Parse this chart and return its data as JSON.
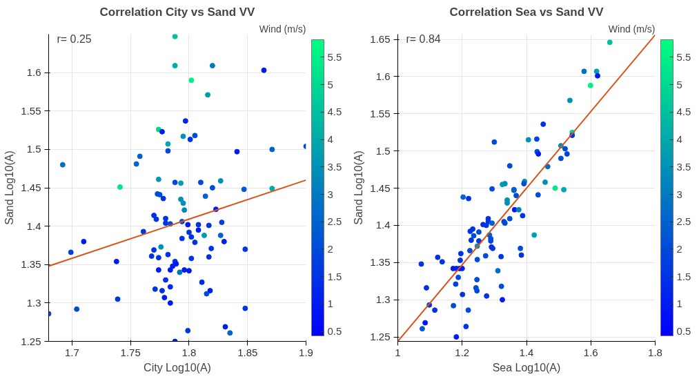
{
  "chart_data": [
    {
      "type": "scatter",
      "title": "Correlation City vs Sand VV",
      "xlabel": "City Log10(A)",
      "ylabel": "Sand Log10(A)",
      "clabel": "Wind (m/s)",
      "annotations": [
        "r= 0.25"
      ],
      "xlim": [
        1.68,
        1.9
      ],
      "ylim": [
        1.25,
        1.65
      ],
      "xticks": [
        1.7,
        1.75,
        1.8,
        1.85,
        1.9
      ],
      "yticks": [
        1.25,
        1.3,
        1.35,
        1.4,
        1.45,
        1.5,
        1.55,
        1.6
      ],
      "clim": [
        0.42,
        5.82
      ],
      "cticks": [
        0.5,
        1,
        1.5,
        2,
        2.5,
        3,
        3.5,
        4,
        4.5,
        5,
        5.5
      ],
      "grid": true,
      "series": [
        {
          "marker": "circle",
          "colors": [
            "#00c19f",
            "#00a9aa",
            "#007ac2",
            "#001bf1",
            "#00f087",
            "#009bb2",
            "#0025ed",
            "#00d893",
            "#001bf1",
            "#0091b6",
            "#004bda",
            "#0033e5",
            "#00a9aa",
            "#004bda",
            "#001bf1",
            "#0062ce",
            "#004bda",
            "#0062ce",
            "#0062ce",
            "#0070c7",
            "#009bb2",
            "#00e68c",
            "#004bda",
            "#00a0af",
            "#004bda",
            "#0091b6",
            "#004bda",
            "#0059d3",
            "#00a9aa",
            "#004bda",
            "#004bda",
            "#0033e5",
            "#0091b6",
            "#0091b6",
            "#0062ce",
            "#0088bb",
            "#001bf1",
            "#0033e5",
            "#0033e5",
            "#0033e5",
            "#0033e5",
            "#004bda",
            "#004bda",
            "#001bf1",
            "#0033e5",
            "#0033e5",
            "#0041de",
            "#001bf1",
            "#0033e5",
            "#0033e5",
            "#0033e5",
            "#009bb2",
            "#0062ce",
            "#0033e5",
            "#0033e5",
            "#001bf1",
            "#001bf1",
            "#0041de",
            "#0091b6",
            "#0033e5",
            "#0033e5",
            "#0033e5",
            "#0033e5",
            "#0033e5",
            "#0033e5",
            "#0033e5",
            "#0033e5",
            "#001bf1",
            "#0033e5",
            "#001bf1",
            "#001bf1",
            "#001bf1",
            "#001bf1",
            "#001bf1",
            "#001bf1",
            "#0070c7",
            "#0033e5",
            "#002aea",
            "#0033e5",
            "#0033e5",
            "#002aea",
            "#001bf1",
            "#004bda",
            "#001bf1",
            "#001bf1",
            "#0033e5",
            "#004bda",
            "#0033e5",
            "#004bda",
            "#0033e5",
            "#001bf1",
            "#0062ce",
            "#001bf1"
          ],
          "x": [
            1.788,
            1.788,
            1.82,
            1.864,
            1.802,
            1.816,
            1.797,
            1.774,
            1.777,
            1.795,
            1.805,
            1.801,
            1.782,
            1.782,
            1.841,
            1.871,
            1.9,
            1.758,
            1.755,
            1.692,
            1.774,
            1.741,
            1.788,
            1.793,
            1.81,
            1.827,
            1.82,
            1.847,
            1.871,
            1.773,
            1.775,
            1.778,
            1.793,
            1.795,
            1.814,
            1.796,
            1.823,
            1.77,
            1.772,
            1.78,
            1.78,
            1.784,
            1.794,
            1.799,
            1.808,
            1.817,
            1.828,
            1.808,
            1.761,
            1.8,
            1.802,
            1.813,
            1.827,
            1.794,
            1.805,
            1.83,
            1.71,
            1.699,
            1.776,
            1.77,
            1.819,
            1.848,
            1.768,
            1.774,
            1.782,
            1.802,
            1.817,
            1.738,
            1.788,
            1.789,
            1.786,
            1.774,
            1.784,
            1.796,
            1.8,
            1.792,
            1.78,
            1.811,
            1.771,
            1.777,
            1.784,
            1.818,
            1.815,
            1.779,
            1.784,
            1.739,
            1.704,
            1.848,
            1.68,
            1.799,
            1.831,
            1.835,
            1.788
          ],
          "values": [
            1.647,
            1.609,
            1.609,
            1.603,
            1.59,
            1.571,
            1.537,
            1.526,
            1.523,
            1.517,
            1.518,
            1.513,
            1.507,
            1.498,
            1.497,
            1.5,
            1.504,
            1.491,
            1.481,
            1.48,
            1.461,
            1.451,
            1.457,
            1.456,
            1.457,
            1.459,
            1.45,
            1.448,
            1.449,
            1.442,
            1.441,
            1.436,
            1.435,
            1.43,
            1.439,
            1.421,
            1.422,
            1.414,
            1.409,
            1.41,
            1.404,
            1.403,
            1.406,
            1.402,
            1.402,
            1.401,
            1.405,
            1.395,
            1.393,
            1.392,
            1.386,
            1.388,
            1.388,
            1.384,
            1.379,
            1.38,
            1.38,
            1.366,
            1.373,
            1.369,
            1.371,
            1.37,
            1.361,
            1.359,
            1.363,
            1.358,
            1.36,
            1.354,
            1.354,
            1.351,
            1.348,
            1.343,
            1.343,
            1.343,
            1.342,
            1.34,
            1.33,
            1.327,
            1.318,
            1.316,
            1.321,
            1.316,
            1.312,
            1.307,
            1.3,
            1.305,
            1.292,
            1.293,
            1.286,
            1.264,
            1.269,
            1.261,
            1.25
          ],
          "cvalues": [
            4.5,
            4,
            3,
            1,
            5.5,
            3.7,
            1.2,
            5,
            1,
            3.5,
            2,
            1.5,
            4,
            2,
            1,
            2.5,
            2,
            2.5,
            2.5,
            2.8,
            3.7,
            5.3,
            2,
            3.8,
            2,
            3.5,
            2,
            2.3,
            4,
            2,
            2,
            1.5,
            3.5,
            3.5,
            2.5,
            3.3,
            1,
            1.5,
            1.5,
            1.5,
            1.5,
            2,
            2,
            1,
            1.5,
            1.5,
            1.8,
            1,
            1.5,
            1.5,
            1.5,
            3.7,
            2.5,
            1.5,
            1.5,
            1,
            1,
            1.8,
            3.5,
            1.5,
            1.5,
            1.5,
            1.5,
            1.5,
            1.5,
            1.5,
            1.5,
            1,
            1.5,
            1,
            1,
            1,
            1,
            1,
            1,
            2.8,
            1.5,
            1.3,
            1.5,
            1.5,
            1.3,
            1,
            2,
            1,
            1,
            1.5,
            2,
            1.5,
            2,
            1.5,
            1,
            2.5,
            1
          ]
        },
        {
          "type": "line",
          "marker": "none",
          "color": "#d95319",
          "x": [
            1.68,
            1.9
          ],
          "values": [
            1.348,
            1.46
          ]
        }
      ]
    },
    {
      "type": "scatter",
      "title": "Correlation Sea vs Sand VV",
      "xlabel": "Sea Log10(A)",
      "ylabel": "Sand Log10(A)",
      "clabel": "Wind (m/s)",
      "annotations": [
        "r= 0.84"
      ],
      "xlim": [
        1,
        1.8
      ],
      "ylim": [
        1.244,
        1.657
      ],
      "xticks": [
        1,
        1.2,
        1.4,
        1.6,
        1.8
      ],
      "yticks": [
        1.25,
        1.3,
        1.35,
        1.4,
        1.45,
        1.5,
        1.55,
        1.6,
        1.65
      ],
      "clim": [
        0.42,
        5.82
      ],
      "cticks": [
        0.5,
        1,
        1.5,
        2,
        2.5,
        3,
        3.5,
        4,
        4.5,
        5,
        5.5
      ],
      "grid": true,
      "series": [
        {
          "marker": "circle",
          "colors": [
            "#00c19f",
            "#0070c7",
            "#00a0af",
            "#001bf1",
            "#00f087",
            "#0091b6",
            "#0033e5",
            "#004bda",
            "#0091b6",
            "#004bda",
            "#00d893",
            "#0033e5",
            "#0091b6",
            "#004bda",
            "#001bf1",
            "#004bda",
            "#0041de",
            "#004bda",
            "#004bda",
            "#0070c7",
            "#00a0af",
            "#0091b6",
            "#0091b6",
            "#004bda",
            "#0091b6",
            "#004bda",
            "#004bda",
            "#00e68c",
            "#00a9aa",
            "#004bda",
            "#0062ce",
            "#0033e5",
            "#004bda",
            "#0062ce",
            "#0091b6",
            "#0091b6",
            "#001bf1",
            "#0083bd",
            "#0033e5",
            "#004bda",
            "#004bda",
            "#004bda",
            "#0033e5",
            "#0033e5",
            "#0033e5",
            "#0033e5",
            "#0062ce",
            "#0033e5",
            "#0033e5",
            "#004bda",
            "#004bda",
            "#0062ce",
            "#0033e5",
            "#0033e5",
            "#004bda",
            "#004bda",
            "#0091b6",
            "#00a0af",
            "#0033e5",
            "#0033e5",
            "#004bda",
            "#0033e5",
            "#004bda",
            "#0033e5",
            "#0033e5",
            "#0033e5",
            "#0033e5",
            "#0033e5",
            "#004bda",
            "#0033e5",
            "#004bda",
            "#001bf1",
            "#001bf1",
            "#001bf1",
            "#001bf1",
            "#0070c7",
            "#004bda",
            "#004bda",
            "#0041de",
            "#0033e5",
            "#004bda",
            "#004bda",
            "#004bda",
            "#0033e5",
            "#0033e5",
            "#001bf1",
            "#0033e5",
            "#004bda",
            "#0033e5",
            "#004bda",
            "#001bf1",
            "#0059d3",
            "#0033e5",
            "#001bf1"
          ],
          "x": [
            1.659,
            1.579,
            1.618,
            1.621,
            1.599,
            1.535,
            1.452,
            1.3,
            1.406,
            1.432,
            1.542,
            1.542,
            1.507,
            1.433,
            1.437,
            1.52,
            1.526,
            1.507,
            1.348,
            1.466,
            1.325,
            1.333,
            1.394,
            1.392,
            1.458,
            1.293,
            1.361,
            1.489,
            1.516,
            1.436,
            1.203,
            1.22,
            1.368,
            1.361,
            1.34,
            1.34,
            1.363,
            1.376,
            1.388,
            1.348,
            1.33,
            1.333,
            1.281,
            1.281,
            1.265,
            1.275,
            1.293,
            1.225,
            1.233,
            1.252,
            1.236,
            1.285,
            1.228,
            1.252,
            1.289,
            1.289,
            1.247,
            1.424,
            1.291,
            1.295,
            1.381,
            1.384,
            1.224,
            1.196,
            1.194,
            1.124,
            1.138,
            1.073,
            1.273,
            1.321,
            1.247,
            1.172,
            1.182,
            1.192,
            1.2,
            1.311,
            1.188,
            1.246,
            1.18,
            1.089,
            1.243,
            1.246,
            1.322,
            1.201,
            1.276,
            1.325,
            1.098,
            1.173,
            1.115,
            1.219,
            1.085,
            1.076,
            1.212,
            1.182
          ],
          "values": [
            1.646,
            1.607,
            1.607,
            1.601,
            1.588,
            1.568,
            1.536,
            1.512,
            1.515,
            1.516,
            1.525,
            1.521,
            1.507,
            1.499,
            1.496,
            1.503,
            1.496,
            1.49,
            1.48,
            1.479,
            1.455,
            1.456,
            1.459,
            1.456,
            1.458,
            1.449,
            1.448,
            1.45,
            1.448,
            1.441,
            1.438,
            1.436,
            1.44,
            1.447,
            1.434,
            1.43,
            1.421,
            1.421,
            1.413,
            1.409,
            1.405,
            1.403,
            1.409,
            1.405,
            1.401,
            1.4,
            1.403,
            1.392,
            1.395,
            1.391,
            1.386,
            1.387,
            1.38,
            1.379,
            1.382,
            1.379,
            1.372,
            1.387,
            1.371,
            1.369,
            1.369,
            1.36,
            1.366,
            1.362,
            1.353,
            1.357,
            1.351,
            1.348,
            1.359,
            1.358,
            1.354,
            1.342,
            1.342,
            1.342,
            1.342,
            1.339,
            1.33,
            1.327,
            1.321,
            1.316,
            1.316,
            1.312,
            1.318,
            1.307,
            1.305,
            1.3,
            1.293,
            1.292,
            1.286,
            1.286,
            1.269,
            1.261,
            1.264,
            1.25
          ],
          "cvalues": [
            4.5,
            2.8,
            3.8,
            1,
            5.5,
            3.5,
            1.5,
            2,
            3.5,
            2,
            5,
            1.5,
            3.5,
            2,
            1,
            2,
            1.8,
            2,
            2,
            2.8,
            3.8,
            3.5,
            3.5,
            2,
            3.5,
            2,
            2,
            5.3,
            4,
            2,
            2.5,
            1.5,
            2,
            2.5,
            3.5,
            3.5,
            1,
            3.2,
            1.5,
            2,
            2,
            2,
            1.5,
            1.5,
            1.5,
            1.5,
            2.5,
            1.5,
            1.5,
            2,
            2,
            2.5,
            1.5,
            1.5,
            2,
            2,
            3.5,
            3.8,
            1.5,
            1.5,
            2,
            1.5,
            2,
            1.5,
            1.5,
            1.5,
            1.5,
            1.5,
            2,
            1.5,
            2,
            1,
            1,
            1,
            1,
            2.8,
            2,
            2,
            1.8,
            1.5,
            2,
            2,
            2,
            1.5,
            1.5,
            1,
            1.5,
            2,
            1.5,
            2,
            1,
            2.3,
            1.5,
            1
          ]
        },
        {
          "type": "line",
          "marker": "none",
          "color": "#d95319",
          "x": [
            1,
            1.8
          ],
          "values": [
            1.244,
            1.656
          ]
        }
      ]
    }
  ]
}
